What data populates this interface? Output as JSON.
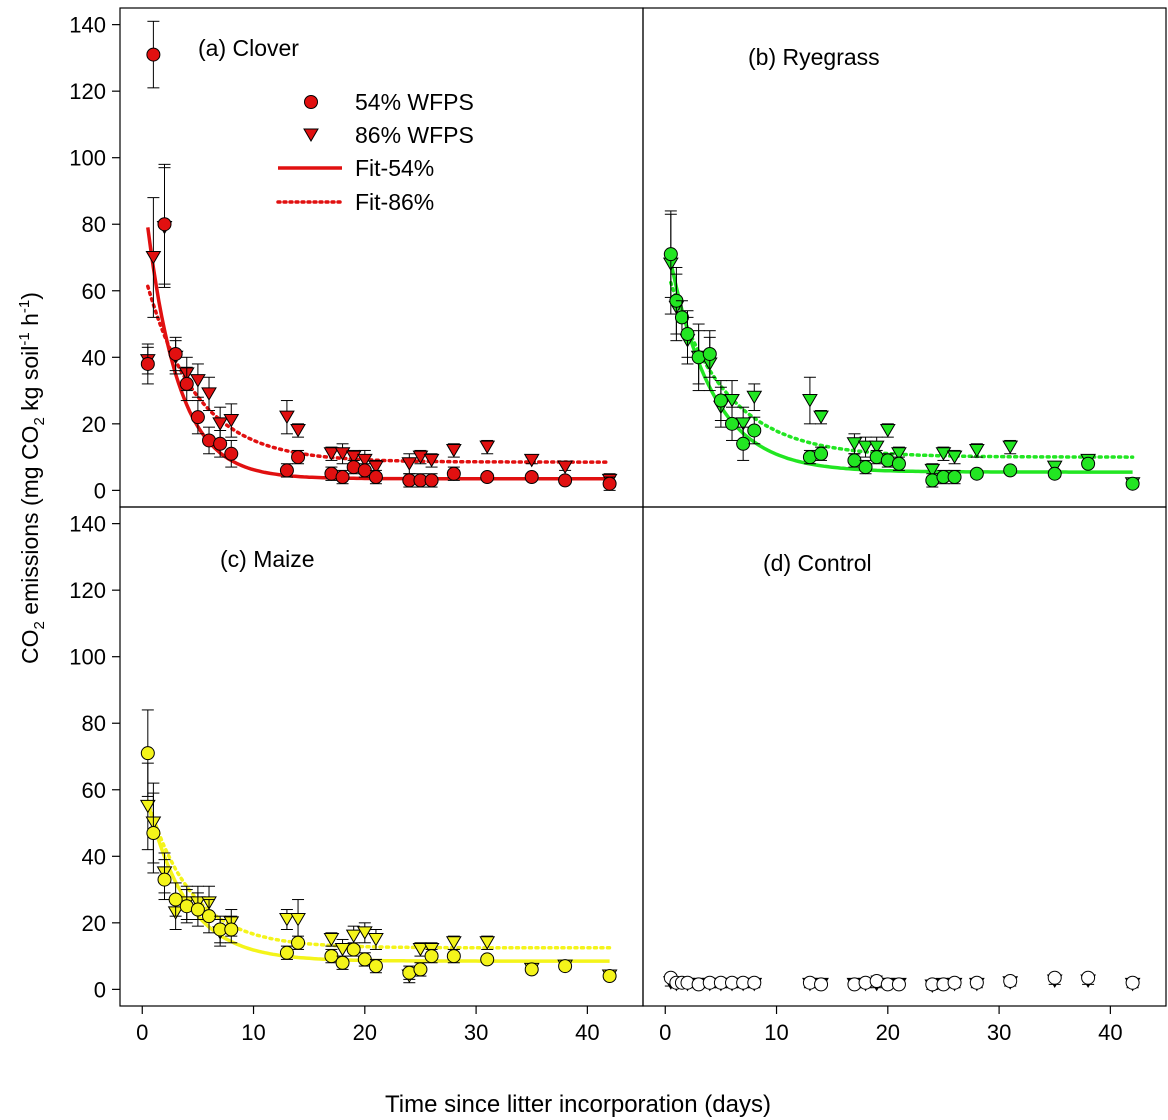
{
  "figure": {
    "y_axis_label": "CO2 emissions (mg CO2 kg soil-1 h-1)",
    "x_axis_label": "Time since litter incorporation (days)",
    "legend": {
      "s54": "54% WFPS",
      "s86": "86% WFPS",
      "f54": "Fit-54%",
      "f86": "Fit-86%"
    }
  },
  "chart_data": [
    {
      "type": "scatter",
      "panel": "a",
      "title": "(a) Clover",
      "color": "#e11010",
      "xlim": [
        -2,
        45
      ],
      "ylim": [
        -5,
        145
      ],
      "xticks": [
        0,
        10,
        20,
        30,
        40
      ],
      "yticks": [
        0,
        20,
        40,
        60,
        80,
        100,
        120,
        140
      ],
      "legend_location": "upper-middle",
      "series": [
        {
          "name": "54% WFPS",
          "marker": "circle",
          "x": [
            0.5,
            1,
            2,
            3,
            4,
            5,
            6,
            7,
            8,
            13,
            14,
            17,
            18,
            19,
            20,
            21,
            24,
            25,
            26,
            28,
            31,
            35,
            38,
            42
          ],
          "y": [
            38,
            131,
            80,
            41,
            32,
            22,
            15,
            14,
            11,
            6,
            10,
            5,
            4,
            7,
            6,
            4,
            3,
            3,
            3,
            5,
            4,
            4,
            3,
            2
          ],
          "err": [
            6,
            10,
            18,
            5,
            5,
            5,
            4,
            4,
            4,
            2,
            2,
            2,
            2,
            2,
            2,
            2,
            2,
            2,
            2,
            2,
            1,
            1,
            1,
            2
          ]
        },
        {
          "name": "86% WFPS",
          "marker": "triangle-down",
          "x": [
            0.5,
            1,
            2,
            3,
            4,
            5,
            6,
            7,
            8,
            13,
            14,
            17,
            18,
            19,
            20,
            21,
            24,
            25,
            26,
            28,
            31,
            35,
            38,
            42
          ],
          "y": [
            39,
            70,
            79,
            40,
            35,
            33,
            29,
            20,
            21,
            22,
            18,
            11,
            11,
            10,
            9,
            7,
            8,
            10,
            9,
            12,
            13,
            9,
            7,
            3
          ],
          "err": [
            4,
            18,
            18,
            5,
            5,
            5,
            5,
            5,
            5,
            5,
            2,
            2,
            3,
            2,
            3,
            2,
            3,
            2,
            2,
            2,
            2,
            1,
            1,
            2
          ]
        }
      ],
      "fits": [
        {
          "name": "Fit-54%",
          "style": "solid",
          "y0": 3.5,
          "a": 90,
          "k": 0.35
        },
        {
          "name": "Fit-86%",
          "style": "dotted",
          "y0": 8.5,
          "a": 59,
          "k": 0.22
        }
      ]
    },
    {
      "type": "scatter",
      "panel": "b",
      "title": "(b) Ryegrass",
      "color": "#22e622",
      "xlim": [
        -2,
        45
      ],
      "ylim": [
        -5,
        145
      ],
      "xticks": [
        0,
        10,
        20,
        30,
        40
      ],
      "yticks": [
        0,
        20,
        40,
        60,
        80,
        100,
        120,
        140
      ],
      "series": [
        {
          "name": "54% WFPS",
          "marker": "circle",
          "x": [
            0.5,
            1,
            1.5,
            2,
            3,
            4,
            5,
            6,
            7,
            8,
            13,
            14,
            17,
            18,
            19,
            20,
            21,
            24,
            25,
            26,
            28,
            31,
            35,
            38,
            42
          ],
          "y": [
            71,
            57,
            52,
            47,
            40,
            41,
            27,
            20,
            14,
            18,
            10,
            11,
            9,
            7,
            10,
            9,
            8,
            3,
            4,
            4,
            5,
            6,
            5,
            8,
            2
          ],
          "err": [
            13,
            10,
            5,
            7,
            10,
            7,
            6,
            5,
            5,
            4,
            2,
            2,
            2,
            2,
            2,
            2,
            2,
            2,
            2,
            2,
            1,
            1,
            1,
            1,
            1
          ]
        },
        {
          "name": "86% WFPS",
          "marker": "triangle-down",
          "x": [
            0.5,
            1,
            2,
            3,
            4,
            5,
            6,
            7,
            8,
            13,
            14,
            17,
            18,
            19,
            20,
            21,
            24,
            25,
            26,
            28,
            31,
            35,
            38,
            42
          ],
          "y": [
            68,
            55,
            45,
            40,
            38,
            25,
            27,
            20,
            28,
            27,
            22,
            14,
            13,
            13,
            18,
            11,
            6,
            11,
            10,
            12,
            13,
            7,
            9,
            2
          ],
          "err": [
            15,
            10,
            7,
            8,
            8,
            6,
            6,
            5,
            4,
            7,
            2,
            3,
            3,
            3,
            2,
            2,
            2,
            2,
            2,
            2,
            2,
            1,
            1,
            1
          ]
        }
      ],
      "fits": [
        {
          "name": "Fit-54%",
          "style": "solid",
          "y0": 5.5,
          "a": 72,
          "k": 0.26
        },
        {
          "name": "Fit-86%",
          "style": "dotted",
          "y0": 10,
          "a": 58,
          "k": 0.2
        }
      ]
    },
    {
      "type": "scatter",
      "panel": "c",
      "title": "(c) Maize",
      "color": "#f4f41a",
      "xlim": [
        -2,
        45
      ],
      "ylim": [
        -5,
        145
      ],
      "xticks": [
        0,
        10,
        20,
        30,
        40
      ],
      "yticks": [
        0,
        20,
        40,
        60,
        80,
        100,
        120,
        140
      ],
      "series": [
        {
          "name": "54% WFPS",
          "marker": "circle",
          "x": [
            0.5,
            1,
            2,
            3,
            4,
            5,
            6,
            7,
            8,
            13,
            14,
            17,
            18,
            19,
            20,
            21,
            24,
            25,
            26,
            28,
            31,
            35,
            38,
            42
          ],
          "y": [
            71,
            47,
            33,
            27,
            25,
            24,
            22,
            18,
            18,
            11,
            14,
            10,
            8,
            12,
            9,
            7,
            5,
            6,
            10,
            10,
            9,
            6,
            7,
            4
          ],
          "err": [
            13,
            12,
            6,
            5,
            5,
            5,
            5,
            4,
            4,
            2,
            2,
            2,
            2,
            2,
            2,
            2,
            2,
            2,
            2,
            2,
            1,
            1,
            1,
            1
          ]
        },
        {
          "name": "86% WFPS",
          "marker": "triangle-down",
          "x": [
            0.5,
            1,
            2,
            3,
            4,
            5,
            6,
            7,
            8,
            13,
            14,
            17,
            18,
            19,
            20,
            21,
            24,
            25,
            26,
            28,
            31,
            35,
            38,
            42
          ],
          "y": [
            55,
            50,
            35,
            23,
            26,
            26,
            26,
            17,
            20,
            21,
            21,
            15,
            12,
            16,
            17,
            15,
            4,
            12,
            12,
            14,
            14,
            6,
            7,
            4
          ],
          "err": [
            13,
            12,
            6,
            5,
            5,
            5,
            5,
            4,
            4,
            3,
            6,
            2,
            3,
            3,
            3,
            3,
            2,
            2,
            2,
            2,
            2,
            1,
            1,
            1
          ]
        }
      ],
      "fits": [
        {
          "name": "Fit-54%",
          "style": "solid",
          "y0": 8.5,
          "a": 55,
          "k": 0.28
        },
        {
          "name": "Fit-86%",
          "style": "dotted",
          "y0": 12.5,
          "a": 50,
          "k": 0.25
        }
      ]
    },
    {
      "type": "scatter",
      "panel": "d",
      "title": "(d) Control",
      "color": "#ffffff",
      "xlim": [
        -2,
        45
      ],
      "ylim": [
        -5,
        145
      ],
      "xticks": [
        0,
        10,
        20,
        30,
        40
      ],
      "yticks": [
        0,
        20,
        40,
        60,
        80,
        100,
        120,
        140
      ],
      "series": [
        {
          "name": "54% WFPS",
          "marker": "circle",
          "x": [
            0.5,
            1,
            1.5,
            2,
            3,
            4,
            5,
            6,
            7,
            8,
            13,
            14,
            17,
            18,
            19,
            20,
            21,
            24,
            25,
            26,
            28,
            31,
            35,
            38,
            42
          ],
          "y": [
            3.5,
            2,
            2,
            2,
            1.5,
            2,
            2,
            2,
            2,
            2,
            2,
            1.5,
            1.5,
            2,
            2.5,
            1.5,
            1.5,
            1.5,
            1.5,
            2,
            2,
            2.5,
            3.5,
            3.5,
            2
          ],
          "err": [
            1,
            1,
            1,
            1,
            1,
            1,
            1,
            1,
            1,
            1,
            1,
            1,
            1,
            1,
            1.5,
            1,
            1,
            1,
            1,
            1,
            1,
            1,
            1,
            1,
            1
          ]
        },
        {
          "name": "86% WFPS",
          "marker": "triangle-down",
          "x": [
            0.5,
            1,
            2,
            3,
            4,
            5,
            6,
            7,
            8,
            13,
            14,
            17,
            18,
            19,
            20,
            21,
            24,
            25,
            26,
            28,
            31,
            35,
            38,
            42
          ],
          "y": [
            2,
            1.5,
            1.5,
            1.5,
            1.5,
            1.5,
            1.5,
            1.5,
            1.5,
            1.5,
            1.5,
            1.5,
            1.5,
            1.5,
            1.5,
            1.5,
            1,
            1.5,
            1.5,
            1.5,
            2,
            2.5,
            2.5,
            1.5
          ],
          "err": [
            1,
            1,
            1,
            1,
            1,
            1,
            1,
            1,
            1,
            1,
            1,
            1,
            1,
            1,
            1,
            1,
            1,
            1,
            1,
            1,
            1,
            1,
            1,
            1
          ]
        }
      ],
      "fits": []
    }
  ]
}
